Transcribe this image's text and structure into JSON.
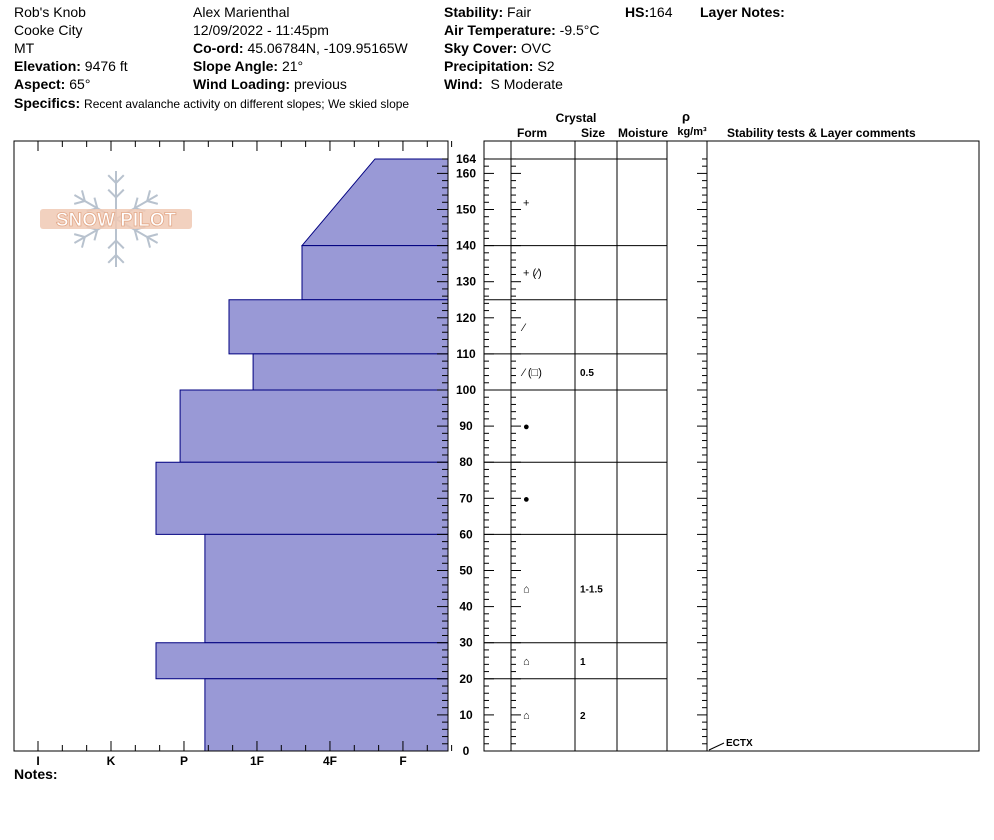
{
  "header": {
    "location": "Rob's Knob",
    "region": "Cooke City",
    "state": "MT",
    "elevation_label": "Elevation:",
    "elevation": "9476 ft",
    "aspect_label": "Aspect:",
    "aspect": "65°",
    "observer": "Alex Marienthal",
    "datetime": "12/09/2022 - 11:45pm",
    "coord_label": "Co-ord:",
    "coord": "45.06784N, -109.95165W",
    "slope_label": "Slope Angle:",
    "slope": "21°",
    "wind_loading_label": "Wind Loading:",
    "wind_loading": "previous",
    "stability_label": "Stability:",
    "stability": "Fair",
    "air_temp_label": "Air Temperature:",
    "air_temp": "-9.5°C",
    "sky_label": "Sky Cover:",
    "sky": "OVC",
    "precip_label": "Precipitation:",
    "precip": "S2",
    "wind_label": "Wind:",
    "wind": "S Moderate",
    "hs_label": "HS:",
    "hs": "164",
    "layer_notes_label": "Layer Notes:",
    "specifics_label": "Specifics:",
    "specifics": "Recent avalanche activity on different slopes; We skied slope"
  },
  "columns": {
    "crystal": "Crystal",
    "form": "Form",
    "size": "Size",
    "moisture": "Moisture",
    "rho": "ρ",
    "density_unit": "kg/m³",
    "stability_tests": "Stability tests & Layer comments"
  },
  "notes_label": "Notes:",
  "logo_text": "SNOW PILOT",
  "colors": {
    "hardness_fill": "#9999d6",
    "hardness_stroke": "#000080"
  },
  "chart_data": {
    "type": "bar",
    "orientation": "horizontal",
    "x_categories": [
      "I",
      "K",
      "P",
      "1F",
      "4F",
      "F"
    ],
    "y_ticks": [
      0,
      10,
      20,
      30,
      40,
      50,
      60,
      70,
      80,
      90,
      100,
      110,
      120,
      130,
      140,
      150,
      160,
      164
    ],
    "ylim": [
      0,
      164
    ],
    "layers": [
      {
        "bottom": 140,
        "top": 164,
        "hardness_bottom": 4.0,
        "hardness_top": 5.0,
        "form": "+",
        "size": ""
      },
      {
        "bottom": 125,
        "top": 140,
        "hardness_bottom": 4.0,
        "hardness_top": 4.0,
        "form": "+ (⁄)",
        "size": ""
      },
      {
        "bottom": 110,
        "top": 125,
        "hardness_bottom": 3.0,
        "hardness_top": 3.0,
        "form": "⁄",
        "size": ""
      },
      {
        "bottom": 100,
        "top": 110,
        "hardness_bottom": 3.33,
        "hardness_top": 3.33,
        "form": "⁄ (□)",
        "size": "0.5"
      },
      {
        "bottom": 80,
        "top": 100,
        "hardness_bottom": 2.33,
        "hardness_top": 2.33,
        "form": "●",
        "size": ""
      },
      {
        "bottom": 60,
        "top": 80,
        "hardness_bottom": 2.0,
        "hardness_top": 2.0,
        "form": "●",
        "size": ""
      },
      {
        "bottom": 30,
        "top": 60,
        "hardness_bottom": 2.67,
        "hardness_top": 2.67,
        "form": "⌂",
        "size": "1-1.5"
      },
      {
        "bottom": 20,
        "top": 30,
        "hardness_bottom": 2.0,
        "hardness_top": 2.0,
        "form": "⌂",
        "size": "1"
      },
      {
        "bottom": 0,
        "top": 20,
        "hardness_bottom": 2.67,
        "hardness_top": 2.67,
        "form": "⌂",
        "size": "2"
      }
    ],
    "stability_tests": [
      {
        "depth": 0,
        "label": "ECTX"
      }
    ]
  }
}
